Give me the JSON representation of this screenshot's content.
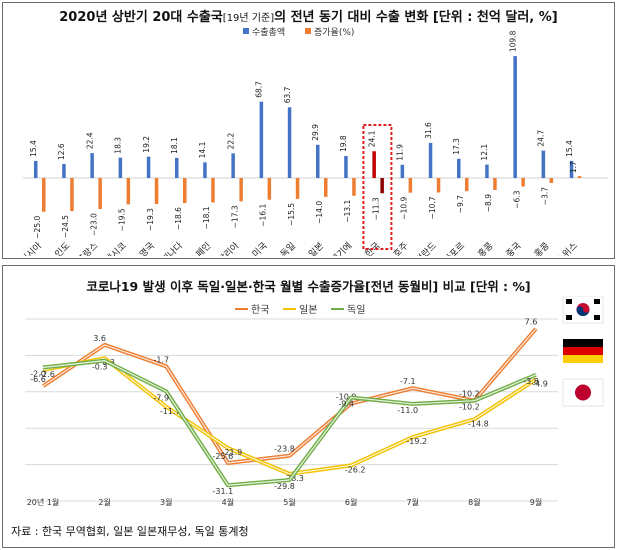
{
  "colors": {
    "total": "#4472c4",
    "growth": "#ed7d31",
    "korea_total": "#c00000",
    "korea_growth": "#8b0000",
    "korea_box": "#e02020",
    "line_korea": "#ed7d31",
    "line_japan": "#f2c200",
    "line_germany": "#70ad47",
    "grid": "#d9d9d9"
  },
  "chart_data": [
    {
      "type": "bar",
      "title": "2020년 상반기 20대 수출국",
      "title_note": "[19년 기준]",
      "title_rest": "의 전년 동기 대비 수출 변화 [단위 : 천억 달러, %]",
      "categories": [
        "러시아",
        "인도",
        "프랑스",
        "멕시코",
        "영국",
        "캐나다",
        "스페인",
        "이탈리아",
        "미국",
        "독일",
        "일본",
        "벨기에",
        "한국",
        "호주",
        "네덜란드",
        "싱가포르",
        "홍콩",
        "중국",
        "홍콩",
        "스위스"
      ],
      "series": [
        {
          "name": "수출총액",
          "values": [
            15.4,
            12.6,
            22.4,
            18.3,
            19.2,
            18.1,
            14.1,
            22.2,
            68.7,
            63.7,
            29.9,
            19.8,
            24.1,
            11.9,
            31.6,
            17.3,
            12.1,
            109.8,
            24.7,
            15.4
          ]
        },
        {
          "name": "증가율(%)",
          "values": [
            -25.0,
            -24.5,
            -23.0,
            -19.5,
            -19.3,
            -18.6,
            -18.1,
            -17.3,
            -16.1,
            -15.5,
            -14.0,
            -13.1,
            -11.3,
            -10.9,
            -10.7,
            -9.7,
            -8.9,
            -6.3,
            -3.7,
            1.7
          ]
        }
      ],
      "highlight_category": "한국",
      "grid": false
    },
    {
      "type": "line",
      "title": "코로나19 발생 이후 독일·일본·한국 월별 수출증가율[전년 동월비] 비교 [단위 : %]",
      "categories": [
        "20년 1월",
        "2월",
        "3월",
        "4월",
        "5월",
        "6월",
        "7월",
        "8월",
        "9월"
      ],
      "series": [
        {
          "name": "한국",
          "values": [
            -6.6,
            3.6,
            -1.7,
            -25.6,
            -23.8,
            -10.9,
            -7.1,
            -10.2,
            7.6
          ]
        },
        {
          "name": "일본",
          "values": [
            -2.6,
            0.3,
            -11.7,
            -21.9,
            -28.3,
            -26.2,
            -19.2,
            -14.8,
            -4.9
          ]
        },
        {
          "name": "독일",
          "values": [
            -2.0,
            -0.3,
            -7.9,
            -31.1,
            -29.8,
            -9.4,
            -11.0,
            -10.2,
            -3.8
          ]
        }
      ],
      "ylim": [
        -35,
        10
      ],
      "grid": true,
      "legend_position": "top-center",
      "flags": [
        "korea-flag-icon",
        "germany-flag-icon",
        "japan-flag-icon"
      ]
    }
  ],
  "source_note": "자료 : 한국 무역협회, 일본 일본재무성, 독일 통계청"
}
